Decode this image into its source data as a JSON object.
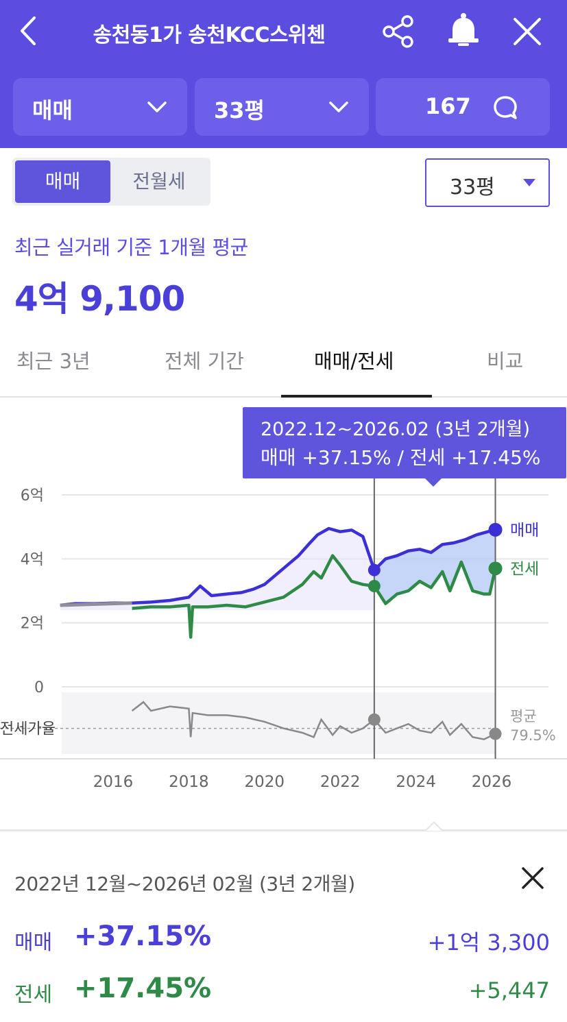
{
  "header": {
    "title": "송천동1가 송천KCC스위첸",
    "icons": {
      "back": "chevron-left-icon",
      "share": "share-icon",
      "bell": "bell-icon",
      "close": "close-icon"
    }
  },
  "selectors": {
    "trade_type": "매매",
    "size": "33평",
    "comments": "167"
  },
  "segment": {
    "active": "매매",
    "inactive": "전월세"
  },
  "size_dropdown": "33평",
  "summary": {
    "label": "최근 실거래 기준 1개월 평균",
    "value": "4억 9,100"
  },
  "tabs": [
    {
      "label": "최근 3년",
      "active": false
    },
    {
      "label": "전체 기간",
      "active": false
    },
    {
      "label": "매매/전세",
      "active": true
    },
    {
      "label": "비교",
      "active": false
    }
  ],
  "tooltip": {
    "period": "2022.12~2026.02 (3년 2개월)",
    "change": "매매 +37.15%  /  전세 +17.45%"
  },
  "chart_data": {
    "type": "line",
    "ylim": [
      0,
      6
    ],
    "y_ticks": [
      "0",
      "2억",
      "4억",
      "6억"
    ],
    "y_tick_values": [
      0,
      2,
      4,
      6
    ],
    "x_ticks": [
      "2016",
      "2018",
      "2020",
      "2022",
      "2024",
      "2026"
    ],
    "x_tick_values": [
      2016,
      2018,
      2020,
      2022,
      2024,
      2026
    ],
    "xlim": [
      2014.6,
      2027.3
    ],
    "selection": [
      2022.9,
      2026.1
    ],
    "colors": {
      "sale": "#3b2fd6",
      "rent": "#2f8a47",
      "ratio": "#888888",
      "fill": "#b3c8f5"
    },
    "series": [
      {
        "name": "매매",
        "x": [
          2014.6,
          2015,
          2015.5,
          2016,
          2016.5,
          2017,
          2017.5,
          2018,
          2018.3,
          2018.6,
          2019,
          2019.4,
          2019.7,
          2020,
          2020.3,
          2020.6,
          2020.9,
          2021.2,
          2021.4,
          2021.7,
          2022,
          2022.3,
          2022.6,
          2022.9,
          2023.2,
          2023.5,
          2023.8,
          2024.1,
          2024.4,
          2024.7,
          2025,
          2025.3,
          2025.6,
          2025.9,
          2026.1
        ],
        "values": [
          2.55,
          2.6,
          2.6,
          2.62,
          2.62,
          2.65,
          2.7,
          2.8,
          3.15,
          2.85,
          2.9,
          2.95,
          3.05,
          3.2,
          3.5,
          3.8,
          4.1,
          4.5,
          4.75,
          4.95,
          4.85,
          4.9,
          4.7,
          3.65,
          4.0,
          4.1,
          4.25,
          4.3,
          4.2,
          4.45,
          4.5,
          4.6,
          4.75,
          4.85,
          4.91
        ]
      },
      {
        "name": "전세",
        "x": [
          2016.5,
          2017,
          2017.5,
          2018,
          2018.05,
          2018.1,
          2018.5,
          2019,
          2019.5,
          2020,
          2020.5,
          2021,
          2021.3,
          2021.5,
          2021.8,
          2022,
          2022.3,
          2022.6,
          2022.9,
          2023.2,
          2023.5,
          2023.8,
          2024.1,
          2024.4,
          2024.7,
          2024.9,
          2025.2,
          2025.5,
          2025.8,
          2025.95,
          2026.1
        ],
        "values": [
          2.45,
          2.5,
          2.5,
          2.55,
          1.55,
          2.5,
          2.5,
          2.55,
          2.5,
          2.65,
          2.8,
          3.2,
          3.6,
          3.4,
          4.1,
          3.8,
          3.3,
          3.2,
          3.15,
          2.6,
          2.9,
          3.0,
          3.3,
          3.1,
          3.6,
          3.0,
          3.9,
          3.0,
          2.9,
          2.9,
          3.7
        ]
      },
      {
        "name": "전세가율",
        "x": [
          2016.5,
          2016.8,
          2017,
          2017.5,
          2018,
          2018.05,
          2018.1,
          2018.5,
          2019,
          2019.5,
          2020,
          2020.5,
          2021,
          2021.3,
          2021.5,
          2021.8,
          2022,
          2022.3,
          2022.6,
          2022.9,
          2023.2,
          2023.5,
          2023.8,
          2024.1,
          2024.4,
          2024.7,
          2024.9,
          2025.2,
          2025.5,
          2025.8,
          2026.1
        ],
        "values": [
          90,
          94,
          90,
          92,
          91,
          78,
          89,
          88,
          88,
          87,
          85,
          82,
          80,
          78,
          86,
          79,
          83,
          80,
          82,
          86,
          80,
          82,
          84,
          81,
          80,
          85,
          79,
          84,
          78,
          77,
          79.5
        ]
      }
    ],
    "legend": [
      "매매",
      "전세"
    ],
    "ratio_label": "전세가율",
    "ratio_avg_label": "평균",
    "ratio_avg_value": "79.5%"
  },
  "detail": {
    "period": "2022년 12월~2026년 02월 (3년 2개월)",
    "sale": {
      "label": "매매",
      "pct": "+37.15%",
      "amount": "+1억 3,300"
    },
    "rent": {
      "label": "전세",
      "pct": "+17.45%",
      "amount": "+5,447"
    }
  }
}
